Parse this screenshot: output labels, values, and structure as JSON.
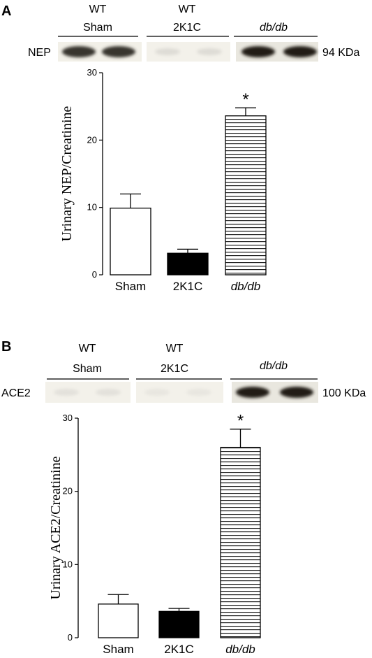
{
  "panels": [
    {
      "letter": "A",
      "blot": {
        "protein": "NEP",
        "size": "94 KDa",
        "groups": [
          {
            "line1": "WT",
            "line2": "Sham"
          },
          {
            "line1": "WT",
            "line2": "2K1C"
          },
          {
            "line1": "",
            "line2": "db/db"
          }
        ],
        "band_intensity": [
          0.85,
          0.12,
          0.95
        ]
      }
    },
    {
      "letter": "B",
      "blot": {
        "protein": "ACE2",
        "size": "100 KDa",
        "groups": [
          {
            "line1": "WT",
            "line2": "Sham"
          },
          {
            "line1": "WT",
            "line2": "2K1C"
          },
          {
            "line1": "",
            "line2": "db/db"
          }
        ],
        "band_intensity": [
          0.1,
          0.08,
          0.95
        ]
      }
    }
  ],
  "chart_data": [
    {
      "type": "bar",
      "categories": [
        "Sham",
        "2K1C",
        "db/db"
      ],
      "values": [
        9.9,
        3.2,
        23.6
      ],
      "errors": [
        2.1,
        0.6,
        1.2
      ],
      "fills": [
        "white",
        "black",
        "hatched"
      ],
      "significance": [
        "",
        "",
        "*"
      ],
      "ylabel": "Urinary NEP/Creatinine",
      "ylim": [
        0,
        30
      ],
      "yticks": [
        "0",
        "10",
        "20",
        "30"
      ],
      "ytick_values": [
        0,
        10,
        20,
        30
      ]
    },
    {
      "type": "bar",
      "categories": [
        "Sham",
        "2K1C",
        "db/db"
      ],
      "values": [
        4.6,
        3.6,
        26.0
      ],
      "errors": [
        1.3,
        0.4,
        2.5
      ],
      "fills": [
        "white",
        "black",
        "hatched"
      ],
      "significance": [
        "",
        "",
        "*"
      ],
      "ylabel": "Urinary ACE2/Creatinine",
      "ylim": [
        0,
        30
      ],
      "yticks": [
        "0",
        "10",
        "20",
        "30"
      ],
      "ytick_values": [
        0,
        10,
        20,
        30
      ]
    }
  ]
}
